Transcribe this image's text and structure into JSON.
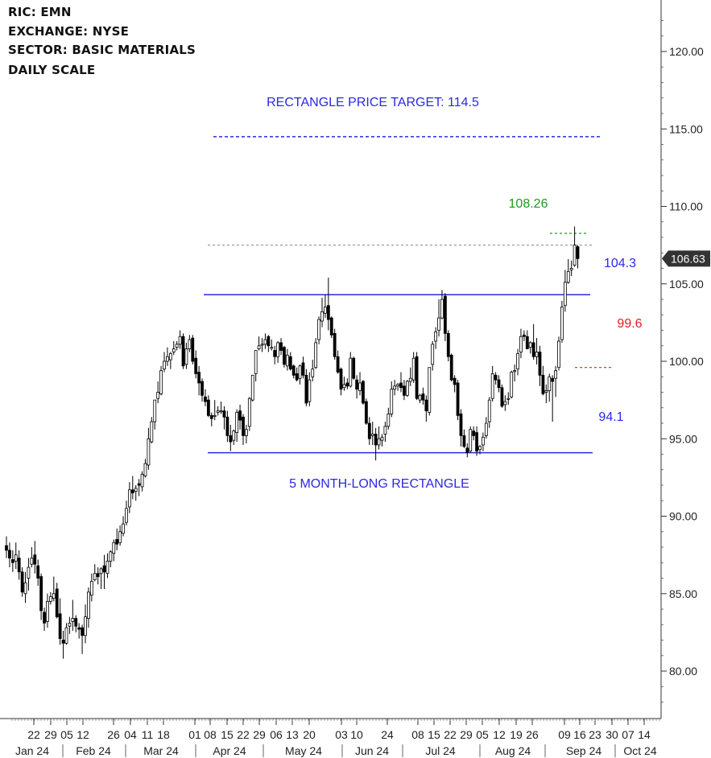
{
  "header": {
    "ric": "RIC:  EMN",
    "exchange": "EXCHANGE: NYSE",
    "sector": "SECTOR:  BASIC MATERIALS",
    "scale": "DAILY SCALE"
  },
  "colors": {
    "up_candle": "#ffffff",
    "down_candle": "#000000",
    "annotation_blue": "#2a2ae0",
    "annotation_green": "#1f9a1f",
    "annotation_red": "#e02020",
    "reference_gray": "#9a9a9a",
    "price_tag": "#333333"
  },
  "chart_data": {
    "type": "candlestick",
    "y_axis": {
      "side": "right",
      "ylim": [
        77.0,
        122.5
      ],
      "ticks": [
        "80.00",
        "85.00",
        "90.00",
        "95.00",
        "100.00",
        "105.00",
        "110.00",
        "115.00",
        "120.00"
      ]
    },
    "x_axis": {
      "day_labels": [
        "22",
        "29",
        "05",
        "12",
        "26",
        "04",
        "11",
        "18",
        "01",
        "08",
        "15",
        "22",
        "29",
        "06",
        "13",
        "20",
        "03",
        "10",
        "24",
        "08",
        "15",
        "22",
        "29",
        "05",
        "12",
        "19",
        "26",
        "09",
        "16",
        "23",
        "30",
        "07",
        "14"
      ],
      "month_labels": [
        "Jan 24",
        "Feb 24",
        "Mar 24",
        "Apr 24",
        "May 24",
        "Jun 24",
        "Jul 24",
        "Aug 24",
        "Sep 24",
        "Oct 24"
      ]
    },
    "last_price": "106.63",
    "levels": {
      "target": {
        "value": 114.5,
        "label": "RECTANGLE PRICE TARGET: 114.5"
      },
      "resistance": {
        "value": 104.3,
        "label": "104.3"
      },
      "support": {
        "value": 94.1,
        "label": "94.1"
      },
      "high_mark": {
        "value": 108.26,
        "label": "108.26"
      },
      "red_mark": {
        "value": 99.6,
        "label": "99.6"
      },
      "gray_ref": {
        "value": 107.5
      }
    },
    "pattern_label": "5 MONTH-LONG RECTANGLE",
    "closes": [
      88.0,
      87.5,
      87.0,
      87.6,
      86.5,
      85.2,
      85.8,
      86.8,
      87.4,
      87.0,
      86.1,
      84.0,
      83.2,
      84.6,
      84.9,
      85.1,
      83.6,
      82.2,
      81.9,
      82.9,
      83.2,
      83.5,
      83.0,
      82.8,
      82.4,
      83.6,
      85.2,
      85.9,
      86.4,
      86.2,
      86.7,
      86.5,
      87.2,
      87.8,
      88.4,
      88.3,
      89.1,
      89.6,
      90.6,
      91.8,
      91.6,
      91.9,
      92.1,
      92.8,
      93.5,
      95.1,
      96.2,
      97.6,
      98.1,
      99.5,
      100.1,
      100.4,
      100.6,
      100.9,
      101.2,
      101.7,
      99.8,
      100.9,
      101.5,
      100.1,
      99.3,
      98.7,
      97.9,
      97.5,
      96.6,
      96.4,
      96.6,
      96.9,
      96.9,
      96.5,
      95.3,
      94.9,
      95.6,
      96.8,
      96.3,
      95.3,
      95.7,
      97.7,
      99.2,
      100.8,
      101.1,
      101.2,
      101.5,
      101.1,
      101.0,
      100.4,
      101.3,
      100.8,
      99.9,
      100.5,
      99.6,
      99.2,
      98.9,
      99.8,
      99.2,
      97.4,
      98.9,
      99.6,
      101.3,
      102.8,
      103.3,
      103.6,
      102.8,
      101.8,
      100.4,
      99.4,
      98.3,
      98.6,
      98.5,
      100.3,
      99.0,
      98.3,
      98.7,
      97.4,
      96.1,
      95.1,
      95.4,
      94.7,
      95.1,
      95.2,
      95.9,
      96.7,
      98.3,
      98.5,
      98.6,
      98.4,
      97.9,
      98.8,
      99.0,
      100.3,
      97.7,
      97.9,
      97.6,
      96.9,
      99.7,
      101.2,
      102.0,
      102.9,
      104.1,
      101.9,
      100.4,
      98.9,
      98.6,
      96.6,
      95.3,
      94.6,
      94.2,
      95.7,
      95.3,
      94.3,
      94.6,
      95.2,
      96.1,
      97.6,
      99.3,
      98.9,
      98.4,
      97.2,
      97.5,
      97.7,
      99.4,
      99.5,
      100.6,
      101.7,
      101.7,
      100.9,
      101.3,
      100.4,
      100.7,
      99.2,
      98.0,
      98.2,
      99.1,
      98.8,
      99.5,
      101.4,
      103.6,
      105.2,
      105.9,
      106.1,
      107.6,
      106.63
    ],
    "candles": [
      [
        88.1,
        87.8,
        88.7,
        87.3
      ],
      [
        87.8,
        87.3,
        88.3,
        86.7
      ],
      [
        87.2,
        87.0,
        87.8,
        86.4
      ],
      [
        87.1,
        87.5,
        88.3,
        86.6
      ],
      [
        87.3,
        86.4,
        87.8,
        85.9
      ],
      [
        86.4,
        85.1,
        86.7,
        84.8
      ],
      [
        85.0,
        85.7,
        86.4,
        84.4
      ],
      [
        86.0,
        86.7,
        87.3,
        85.2
      ],
      [
        86.9,
        87.3,
        88.0,
        86.7
      ],
      [
        87.5,
        86.9,
        88.4,
        86.3
      ],
      [
        86.8,
        86.0,
        87.2,
        85.5
      ],
      [
        86.1,
        83.9,
        86.3,
        83.3
      ],
      [
        83.8,
        83.1,
        84.1,
        82.6
      ],
      [
        83.2,
        84.5,
        85.0,
        82.8
      ],
      [
        84.5,
        84.8,
        85.1,
        84.3
      ],
      [
        84.7,
        85.0,
        86.1,
        84.5
      ],
      [
        85.3,
        83.5,
        85.7,
        83.4
      ],
      [
        83.7,
        82.1,
        84.7,
        81.7
      ],
      [
        82.0,
        81.8,
        82.6,
        80.8
      ],
      [
        81.8,
        82.8,
        83.1,
        81.7
      ],
      [
        82.9,
        83.1,
        83.5,
        82.4
      ],
      [
        83.2,
        83.4,
        84.6,
        82.6
      ],
      [
        83.4,
        82.9,
        83.6,
        82.5
      ],
      [
        82.8,
        82.7,
        83.1,
        82.1
      ],
      [
        82.8,
        82.3,
        83.0,
        81.1
      ],
      [
        82.3,
        83.5,
        84.3,
        81.8
      ],
      [
        83.4,
        85.1,
        85.4,
        82.8
      ],
      [
        84.9,
        85.8,
        86.3,
        84.5
      ],
      [
        85.9,
        86.3,
        86.9,
        85.8
      ],
      [
        86.3,
        86.1,
        86.7,
        85.6
      ],
      [
        86.3,
        86.6,
        86.7,
        85.3
      ],
      [
        86.8,
        86.4,
        87.5,
        85.3
      ],
      [
        86.3,
        87.1,
        87.6,
        86.0
      ],
      [
        87.1,
        87.7,
        87.8,
        86.7
      ],
      [
        87.6,
        88.3,
        88.5,
        87.1
      ],
      [
        88.5,
        88.2,
        89.2,
        87.8
      ],
      [
        88.3,
        89.0,
        89.4,
        88.1
      ],
      [
        88.9,
        89.5,
        90.0,
        88.7
      ],
      [
        89.6,
        90.5,
        91.0,
        89.4
      ],
      [
        90.6,
        91.7,
        92.2,
        90.2
      ],
      [
        91.7,
        91.5,
        92.6,
        91.1
      ],
      [
        91.6,
        91.8,
        92.0,
        91.0
      ],
      [
        92.1,
        92.0,
        92.4,
        91.3
      ],
      [
        91.9,
        92.7,
        92.9,
        91.6
      ],
      [
        92.6,
        93.4,
        93.7,
        92.5
      ],
      [
        93.3,
        95.0,
        95.7,
        93.0
      ],
      [
        94.8,
        96.1,
        96.4,
        94.7
      ],
      [
        96.1,
        97.5,
        97.5,
        95.6
      ],
      [
        97.6,
        98.0,
        98.7,
        97.3
      ],
      [
        97.9,
        99.4,
        99.7,
        97.8
      ],
      [
        99.5,
        100.0,
        100.6,
        99.3
      ],
      [
        100.0,
        100.3,
        100.9,
        99.7
      ],
      [
        100.1,
        100.5,
        100.6,
        99.5
      ],
      [
        100.6,
        100.8,
        101.3,
        100.4
      ],
      [
        100.9,
        101.1,
        101.3,
        100.7
      ],
      [
        101.1,
        101.6,
        102.0,
        100.8
      ],
      [
        101.6,
        99.7,
        101.8,
        99.5
      ],
      [
        99.8,
        100.8,
        101.2,
        99.5
      ],
      [
        100.8,
        101.4,
        101.7,
        100.6
      ],
      [
        101.5,
        100.0,
        101.7,
        99.8
      ],
      [
        100.2,
        99.2,
        100.7,
        98.9
      ],
      [
        99.3,
        98.6,
        99.7,
        97.8
      ],
      [
        98.7,
        97.8,
        98.9,
        97.4
      ],
      [
        97.7,
        97.4,
        98.2,
        97.1
      ],
      [
        97.5,
        96.5,
        97.8,
        96.4
      ],
      [
        96.5,
        96.3,
        96.7,
        95.8
      ],
      [
        96.5,
        96.5,
        97.5,
        96.2
      ],
      [
        96.7,
        96.8,
        97.1,
        96.5
      ],
      [
        96.8,
        96.8,
        97.4,
        96.6
      ],
      [
        96.8,
        96.4,
        97.1,
        95.6
      ],
      [
        96.4,
        95.2,
        96.8,
        94.8
      ],
      [
        95.2,
        94.8,
        95.9,
        94.2
      ],
      [
        94.9,
        95.5,
        95.6,
        94.6
      ],
      [
        95.4,
        96.7,
        96.9,
        94.8
      ],
      [
        96.8,
        96.2,
        97.2,
        95.6
      ],
      [
        96.4,
        95.2,
        96.6,
        94.6
      ],
      [
        95.2,
        95.6,
        95.9,
        94.7
      ],
      [
        95.8,
        97.6,
        97.7,
        95.5
      ],
      [
        97.5,
        99.1,
        99.1,
        97.4
      ],
      [
        99.2,
        100.7,
        100.7,
        98.7
      ],
      [
        100.8,
        101.0,
        101.6,
        100.7
      ],
      [
        101.1,
        101.1,
        101.5,
        100.6
      ],
      [
        101.1,
        101.4,
        101.8,
        100.8
      ],
      [
        101.6,
        101.0,
        101.7,
        100.6
      ],
      [
        100.9,
        100.9,
        101.4,
        100.7
      ],
      [
        100.7,
        100.3,
        101.0,
        99.8
      ],
      [
        100.3,
        101.2,
        101.3,
        99.9
      ],
      [
        101.2,
        100.7,
        101.5,
        100.4
      ],
      [
        100.9,
        99.8,
        101.0,
        99.6
      ],
      [
        99.7,
        100.4,
        100.8,
        99.4
      ],
      [
        100.3,
        99.5,
        100.6,
        99.4
      ],
      [
        99.7,
        99.1,
        99.8,
        98.9
      ],
      [
        99.2,
        98.8,
        99.6,
        98.7
      ],
      [
        98.9,
        99.7,
        99.8,
        98.5
      ],
      [
        99.9,
        99.1,
        100.3,
        98.9
      ],
      [
        99.1,
        97.3,
        99.5,
        97.1
      ],
      [
        97.4,
        98.8,
        99.3,
        97.1
      ],
      [
        99.0,
        99.5,
        100.1,
        98.7
      ],
      [
        99.6,
        101.2,
        101.5,
        99.5
      ],
      [
        101.4,
        102.7,
        102.9,
        101.1
      ],
      [
        102.6,
        103.2,
        104.1,
        102.2
      ],
      [
        103.1,
        103.5,
        104.3,
        102.8
      ],
      [
        103.6,
        102.7,
        105.4,
        102.0
      ],
      [
        102.8,
        101.7,
        102.9,
        101.5
      ],
      [
        101.8,
        100.3,
        102.1,
        100.1
      ],
      [
        100.3,
        99.3,
        100.7,
        99.2
      ],
      [
        99.5,
        98.2,
        99.6,
        97.8
      ],
      [
        98.3,
        98.5,
        99.0,
        98.1
      ],
      [
        98.6,
        98.4,
        98.9,
        98.2
      ],
      [
        98.4,
        100.2,
        100.6,
        98.3
      ],
      [
        100.2,
        98.9,
        100.3,
        98.8
      ],
      [
        98.8,
        98.2,
        99.1,
        97.6
      ],
      [
        98.1,
        98.6,
        99.3,
        97.8
      ],
      [
        98.7,
        97.3,
        98.8,
        97.2
      ],
      [
        97.4,
        96.0,
        97.6,
        95.9
      ],
      [
        96.0,
        95.0,
        96.4,
        94.6
      ],
      [
        95.2,
        95.3,
        96.1,
        94.6
      ],
      [
        95.3,
        94.6,
        95.7,
        93.6
      ],
      [
        94.6,
        95.0,
        95.8,
        94.3
      ],
      [
        94.9,
        95.1,
        95.3,
        94.5
      ],
      [
        95.3,
        95.8,
        96.1,
        94.8
      ],
      [
        95.8,
        96.6,
        97.0,
        95.6
      ],
      [
        96.6,
        98.2,
        98.7,
        96.4
      ],
      [
        98.2,
        98.4,
        98.8,
        97.8
      ],
      [
        98.4,
        98.5,
        98.6,
        98.1
      ],
      [
        98.6,
        98.3,
        99.3,
        98.0
      ],
      [
        98.4,
        97.8,
        98.8,
        97.5
      ],
      [
        97.8,
        98.7,
        98.8,
        97.7
      ],
      [
        98.7,
        98.9,
        99.6,
        98.4
      ],
      [
        98.8,
        100.2,
        100.6,
        98.6
      ],
      [
        100.3,
        97.6,
        100.6,
        97.5
      ],
      [
        97.5,
        97.8,
        97.9,
        97.3
      ],
      [
        97.9,
        97.5,
        98.3,
        97.2
      ],
      [
        97.5,
        96.8,
        97.8,
        96.1
      ],
      [
        96.7,
        99.6,
        99.6,
        96.5
      ],
      [
        99.8,
        101.1,
        101.3,
        99.4
      ],
      [
        101.3,
        101.9,
        102.2,
        100.8
      ],
      [
        102.0,
        102.8,
        104.0,
        101.6
      ],
      [
        102.8,
        104.0,
        104.6,
        102.7
      ],
      [
        104.2,
        101.8,
        104.4,
        101.3
      ],
      [
        101.8,
        100.3,
        102.0,
        100.0
      ],
      [
        100.4,
        98.8,
        100.5,
        98.7
      ],
      [
        98.9,
        98.5,
        99.1,
        98.0
      ],
      [
        98.6,
        96.5,
        98.8,
        96.2
      ],
      [
        96.6,
        95.2,
        96.9,
        94.5
      ],
      [
        95.2,
        94.5,
        95.6,
        94.4
      ],
      [
        94.4,
        94.1,
        94.7,
        93.8
      ],
      [
        94.2,
        95.6,
        95.8,
        94.1
      ],
      [
        95.5,
        95.2,
        95.8,
        94.9
      ],
      [
        95.4,
        94.2,
        95.8,
        93.9
      ],
      [
        94.3,
        94.5,
        94.6,
        94.0
      ],
      [
        94.6,
        95.1,
        95.4,
        94.2
      ],
      [
        95.2,
        96.0,
        96.4,
        95.0
      ],
      [
        96.1,
        97.5,
        97.7,
        95.7
      ],
      [
        97.6,
        99.2,
        99.7,
        97.4
      ],
      [
        99.1,
        98.8,
        99.3,
        98.5
      ],
      [
        98.8,
        98.3,
        99.1,
        98.0
      ],
      [
        98.3,
        97.1,
        98.5,
        97.0
      ],
      [
        97.2,
        97.4,
        97.8,
        96.8
      ],
      [
        97.6,
        97.6,
        98.0,
        97.2
      ],
      [
        97.7,
        99.3,
        99.4,
        97.6
      ],
      [
        99.4,
        99.4,
        99.8,
        98.7
      ],
      [
        99.5,
        100.5,
        100.8,
        99.1
      ],
      [
        100.6,
        101.6,
        102.1,
        100.2
      ],
      [
        101.7,
        101.6,
        102.0,
        101.3
      ],
      [
        101.6,
        100.8,
        102.0,
        100.8
      ],
      [
        100.9,
        101.2,
        101.3,
        100.5
      ],
      [
        101.2,
        100.3,
        102.4,
        100.1
      ],
      [
        100.3,
        100.6,
        101.5,
        99.8
      ],
      [
        100.6,
        99.1,
        101.0,
        98.4
      ],
      [
        99.1,
        97.9,
        99.7,
        97.8
      ],
      [
        98.0,
        98.1,
        98.5,
        97.3
      ],
      [
        98.1,
        99.0,
        99.2,
        97.4
      ],
      [
        98.9,
        98.7,
        99.1,
        96.1
      ],
      [
        98.9,
        99.4,
        99.7,
        97.7
      ],
      [
        99.6,
        101.3,
        101.6,
        99.4
      ],
      [
        101.4,
        103.5,
        103.9,
        101.2
      ],
      [
        103.6,
        105.1,
        105.9,
        103.2
      ],
      [
        105.1,
        105.8,
        106.6,
        105.0
      ],
      [
        105.9,
        106.0,
        106.5,
        105.5
      ],
      [
        106.2,
        107.5,
        108.7,
        106.1
      ],
      [
        107.4,
        106.63,
        107.5,
        106.0
      ]
    ]
  }
}
